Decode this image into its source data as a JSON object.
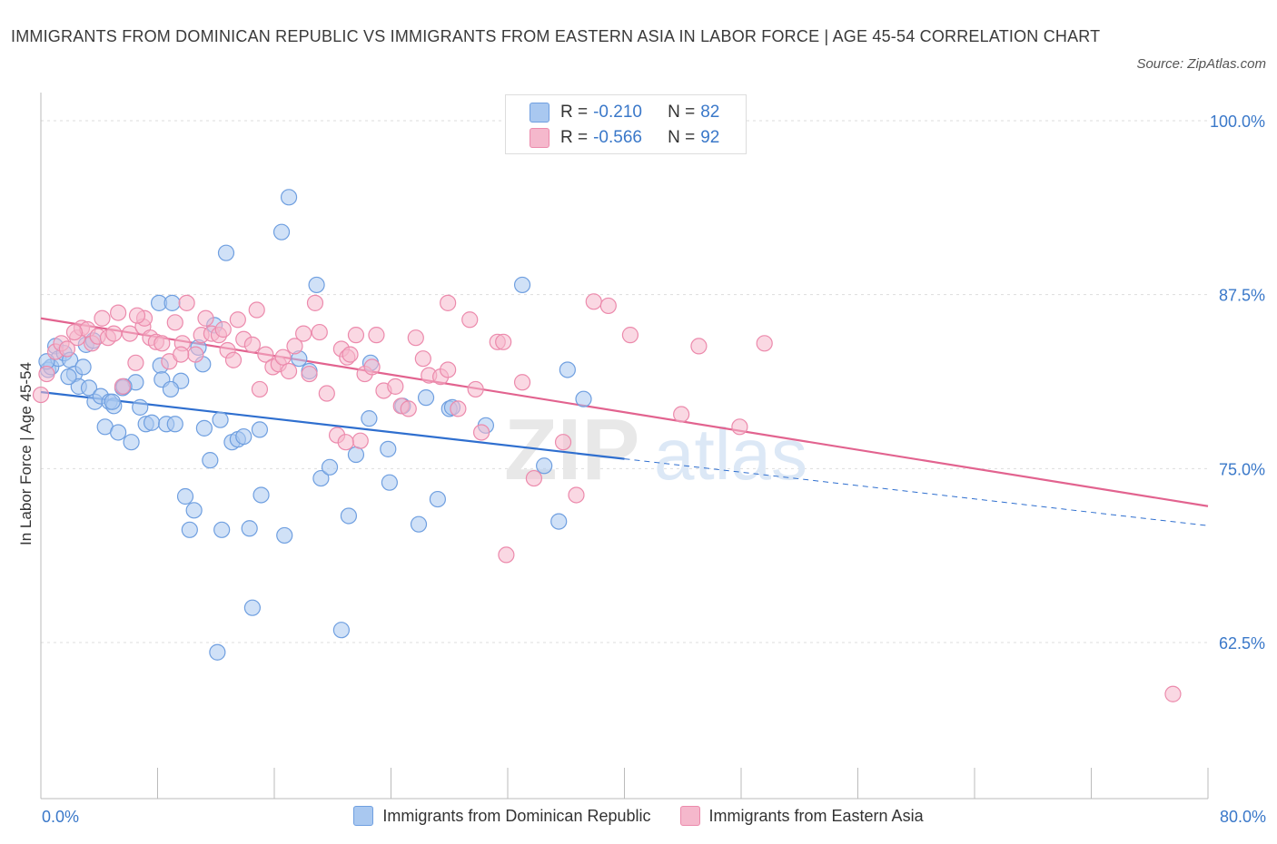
{
  "title": "IMMIGRANTS FROM DOMINICAN REPUBLIC VS IMMIGRANTS FROM EASTERN ASIA IN LABOR FORCE | AGE 45-54 CORRELATION CHART",
  "source": "Source: ZipAtlas.com",
  "watermark_zip": "ZIP",
  "watermark_atlas": "atlas",
  "legend_box": {
    "row1": {
      "r_label": "R =",
      "r_value": "-0.210",
      "n_label": "N =",
      "n_value": "82"
    },
    "row2": {
      "r_label": "R =",
      "r_value": "-0.566",
      "n_label": "N =",
      "n_value": "92"
    }
  },
  "colors": {
    "blue_fill": "#a9c8f0",
    "blue_stroke": "#6f9fe0",
    "blue_line": "#2f6fcf",
    "pink_fill": "#f5b8cc",
    "pink_stroke": "#ec8aac",
    "pink_line": "#e2638f",
    "axis_text": "#3a78c9",
    "grid": "#dddddd"
  },
  "chart_data": {
    "type": "scatter",
    "xlabel": "",
    "ylabel": "In Labor Force | Age 45-54",
    "xlim": [
      0,
      80
    ],
    "ylim": [
      50,
      102
    ],
    "x_tick_labels": [
      "0.0%",
      "80.0%"
    ],
    "y_ticks": [
      62.5,
      75.0,
      87.5,
      100.0
    ],
    "y_tick_labels": [
      "62.5%",
      "75.0%",
      "87.5%",
      "100.0%"
    ],
    "grid": true,
    "legend_position": "bottom",
    "series": [
      {
        "name": "Immigrants from Dominican Republic",
        "color": "blue",
        "points": [
          [
            0.5,
            82.1
          ],
          [
            0.7,
            82.3
          ],
          [
            1.0,
            83.8
          ],
          [
            1.2,
            82.9
          ],
          [
            1.6,
            83.3
          ],
          [
            2.0,
            82.8
          ],
          [
            2.3,
            81.8
          ],
          [
            2.6,
            80.9
          ],
          [
            2.9,
            82.3
          ],
          [
            3.1,
            83.9
          ],
          [
            3.3,
            80.8
          ],
          [
            3.7,
            79.8
          ],
          [
            4.1,
            80.2
          ],
          [
            4.4,
            78.0
          ],
          [
            4.7,
            79.8
          ],
          [
            5.0,
            79.5
          ],
          [
            5.3,
            77.6
          ],
          [
            5.6,
            80.8
          ],
          [
            6.2,
            76.9
          ],
          [
            6.5,
            81.2
          ],
          [
            6.8,
            79.4
          ],
          [
            7.2,
            78.2
          ],
          [
            7.6,
            78.3
          ],
          [
            8.2,
            82.4
          ],
          [
            8.3,
            81.4
          ],
          [
            8.6,
            78.2
          ],
          [
            9.2,
            78.2
          ],
          [
            8.1,
            86.9
          ],
          [
            9.0,
            86.9
          ],
          [
            9.6,
            81.3
          ],
          [
            9.9,
            73.0
          ],
          [
            10.2,
            70.6
          ],
          [
            10.5,
            72.0
          ],
          [
            10.8,
            83.7
          ],
          [
            11.1,
            82.5
          ],
          [
            11.2,
            77.9
          ],
          [
            11.6,
            75.6
          ],
          [
            11.9,
            85.3
          ],
          [
            12.3,
            78.5
          ],
          [
            12.4,
            70.6
          ],
          [
            12.7,
            90.5
          ],
          [
            13.1,
            76.9
          ],
          [
            13.5,
            77.1
          ],
          [
            13.9,
            77.3
          ],
          [
            14.3,
            70.7
          ],
          [
            14.5,
            65.0
          ],
          [
            15.0,
            77.8
          ],
          [
            15.1,
            73.1
          ],
          [
            16.5,
            92.0
          ],
          [
            16.7,
            70.2
          ],
          [
            17.0,
            94.5
          ],
          [
            17.7,
            82.9
          ],
          [
            18.4,
            82.0
          ],
          [
            18.9,
            88.2
          ],
          [
            19.2,
            74.3
          ],
          [
            19.8,
            75.1
          ],
          [
            21.1,
            71.6
          ],
          [
            21.6,
            76.0
          ],
          [
            22.5,
            78.6
          ],
          [
            22.6,
            82.6
          ],
          [
            23.8,
            76.4
          ],
          [
            23.9,
            74.0
          ],
          [
            24.8,
            79.5
          ],
          [
            25.9,
            71.0
          ],
          [
            26.4,
            80.1
          ],
          [
            27.2,
            72.8
          ],
          [
            28.0,
            79.3
          ],
          [
            28.2,
            79.4
          ],
          [
            30.5,
            78.1
          ],
          [
            33.0,
            88.2
          ],
          [
            34.5,
            75.2
          ],
          [
            36.1,
            82.1
          ],
          [
            35.5,
            71.2
          ],
          [
            37.2,
            80.0
          ],
          [
            20.6,
            63.4
          ],
          [
            12.1,
            61.8
          ],
          [
            8.9,
            80.7
          ],
          [
            5.7,
            80.9
          ],
          [
            4.9,
            79.8
          ],
          [
            3.6,
            84.2
          ],
          [
            1.9,
            81.6
          ],
          [
            0.4,
            82.7
          ]
        ],
        "trend": {
          "x_start": 0,
          "x_end": 40,
          "y_start": 80.5,
          "y_end": 75.7,
          "dashed_to": 80,
          "dashed_y_end": 70.9
        }
      },
      {
        "name": "Immigrants from Eastern Asia",
        "color": "pink",
        "points": [
          [
            0.0,
            80.3
          ],
          [
            0.4,
            81.8
          ],
          [
            1.0,
            83.4
          ],
          [
            1.4,
            84.0
          ],
          [
            1.8,
            83.6
          ],
          [
            2.5,
            84.4
          ],
          [
            2.8,
            85.1
          ],
          [
            3.2,
            85.0
          ],
          [
            3.5,
            84.0
          ],
          [
            3.9,
            84.5
          ],
          [
            4.2,
            85.8
          ],
          [
            4.6,
            84.4
          ],
          [
            5.0,
            84.7
          ],
          [
            5.3,
            86.2
          ],
          [
            5.6,
            80.9
          ],
          [
            6.1,
            84.7
          ],
          [
            6.5,
            82.6
          ],
          [
            7.0,
            85.2
          ],
          [
            7.1,
            85.8
          ],
          [
            7.5,
            84.4
          ],
          [
            7.9,
            84.1
          ],
          [
            8.3,
            84.0
          ],
          [
            8.8,
            82.7
          ],
          [
            9.2,
            85.5
          ],
          [
            9.7,
            84.0
          ],
          [
            10.0,
            86.9
          ],
          [
            10.6,
            83.2
          ],
          [
            11.0,
            84.6
          ],
          [
            11.3,
            85.8
          ],
          [
            11.7,
            84.7
          ],
          [
            12.2,
            84.6
          ],
          [
            12.5,
            85.0
          ],
          [
            12.8,
            83.5
          ],
          [
            13.2,
            82.8
          ],
          [
            13.5,
            85.7
          ],
          [
            13.9,
            84.3
          ],
          [
            14.5,
            83.9
          ],
          [
            14.8,
            86.4
          ],
          [
            15.0,
            80.7
          ],
          [
            15.4,
            83.2
          ],
          [
            15.9,
            82.3
          ],
          [
            16.3,
            82.5
          ],
          [
            16.6,
            83.0
          ],
          [
            17.0,
            82.0
          ],
          [
            17.4,
            83.8
          ],
          [
            18.0,
            84.7
          ],
          [
            18.4,
            81.8
          ],
          [
            18.8,
            86.9
          ],
          [
            19.1,
            84.8
          ],
          [
            19.6,
            80.4
          ],
          [
            20.3,
            77.4
          ],
          [
            20.6,
            83.6
          ],
          [
            21.0,
            83.0
          ],
          [
            21.2,
            83.2
          ],
          [
            21.6,
            84.6
          ],
          [
            21.9,
            77.0
          ],
          [
            22.2,
            81.8
          ],
          [
            22.7,
            82.3
          ],
          [
            23.0,
            84.6
          ],
          [
            23.5,
            80.6
          ],
          [
            24.3,
            80.9
          ],
          [
            24.7,
            79.5
          ],
          [
            25.2,
            79.3
          ],
          [
            25.7,
            84.4
          ],
          [
            26.2,
            82.9
          ],
          [
            26.6,
            81.7
          ],
          [
            27.4,
            81.6
          ],
          [
            27.9,
            82.1
          ],
          [
            28.6,
            79.3
          ],
          [
            29.4,
            85.7
          ],
          [
            29.8,
            80.7
          ],
          [
            30.2,
            77.6
          ],
          [
            31.3,
            84.1
          ],
          [
            31.7,
            84.1
          ],
          [
            31.9,
            68.8
          ],
          [
            33.0,
            81.2
          ],
          [
            33.8,
            74.3
          ],
          [
            35.8,
            76.9
          ],
          [
            37.9,
            87.0
          ],
          [
            38.9,
            86.7
          ],
          [
            40.4,
            84.6
          ],
          [
            45.1,
            83.8
          ],
          [
            47.9,
            78.0
          ],
          [
            49.6,
            84.0
          ],
          [
            36.7,
            73.1
          ],
          [
            27.9,
            86.9
          ],
          [
            20.9,
            76.9
          ],
          [
            9.6,
            83.2
          ],
          [
            6.6,
            86.0
          ],
          [
            2.3,
            84.8
          ],
          [
            77.6,
            58.8
          ],
          [
            43.9,
            78.9
          ]
        ],
        "trend": {
          "x_start": 0,
          "x_end": 80,
          "y_start": 85.8,
          "y_end": 72.3
        }
      }
    ]
  }
}
